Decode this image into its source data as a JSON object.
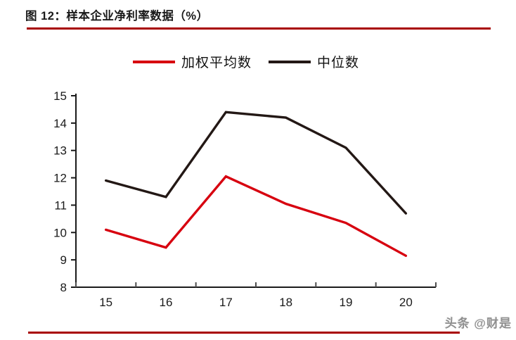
{
  "page": {
    "title": "图 12：样本企业净利率数据（%）",
    "watermark": "头条 @财是",
    "accent_color": "#a80000"
  },
  "chart_data": {
    "type": "line",
    "title": "图 12：样本企业净利率数据（%）",
    "categories": [
      "15",
      "16",
      "17",
      "18",
      "19",
      "20"
    ],
    "series": [
      {
        "name": "加权平均数",
        "color": "#d7000f",
        "values": [
          10.1,
          9.45,
          12.05,
          11.05,
          10.35,
          9.15
        ]
      },
      {
        "name": "中位数",
        "color": "#231815",
        "values": [
          11.9,
          11.3,
          14.4,
          14.2,
          13.1,
          10.7
        ]
      }
    ],
    "ylim": [
      8,
      15
    ],
    "yticks": [
      8,
      9,
      10,
      11,
      12,
      13,
      14,
      15
    ],
    "ytick_step": 1,
    "grid": false,
    "legend_position": "top-center",
    "axis_color": "#1a1a1a",
    "line_width": 3.4
  }
}
